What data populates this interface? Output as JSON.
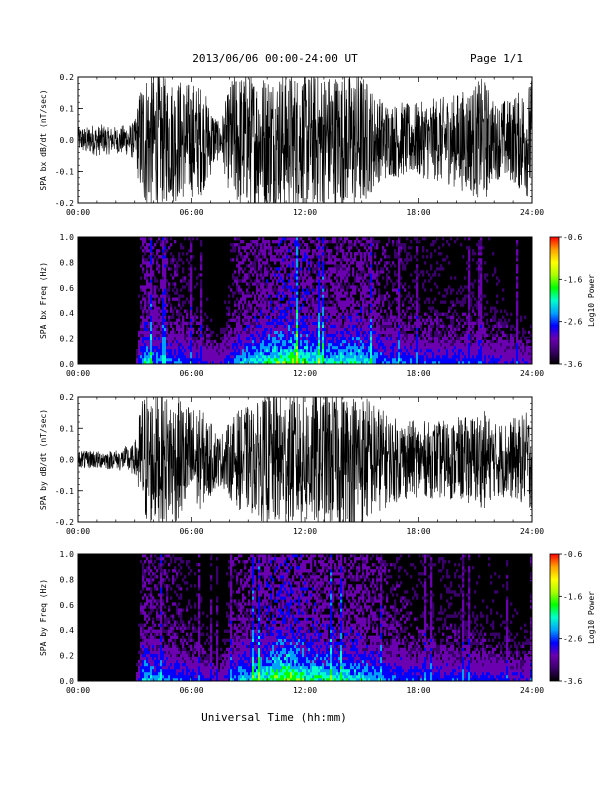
{
  "header": {
    "title": "2013/06/06  00:00-24:00 UT",
    "page": "Page 1/1"
  },
  "colors": {
    "trace": "#000000",
    "spectro_bg": "#000000",
    "axis": "#000000"
  },
  "colorbar_stops": [
    "#000000",
    "#3a006a",
    "#6a00b0",
    "#0000ff",
    "#00a0ff",
    "#00ffcc",
    "#00ff00",
    "#aaff00",
    "#ffff00",
    "#ffa000",
    "#ff0000"
  ],
  "chart_data": [
    {
      "type": "line",
      "id": "bx-dbdt",
      "ylabel": "SPA bx dB/dt (nT/sec)",
      "ylim": [
        -0.2,
        0.2
      ],
      "yticks": [
        "-0.2",
        "-0.1",
        "0.0",
        "0.1",
        "0.2"
      ],
      "yticks_values": [
        -0.2,
        -0.1,
        0.0,
        0.1,
        0.2
      ],
      "xticks": [
        "00:00",
        "06:00",
        "12:00",
        "18:00",
        "24:00"
      ],
      "xlim_hours": [
        0,
        24
      ],
      "envelope_hours": [
        0,
        1,
        2,
        3,
        3.4,
        3.6,
        5,
        6.5,
        7.5,
        8.2,
        9,
        10,
        11,
        12,
        13,
        14,
        15,
        15.8,
        16.5,
        18,
        20,
        21.5,
        22,
        23,
        24
      ],
      "envelope_amp": [
        0.04,
        0.05,
        0.04,
        0.06,
        0.22,
        0.22,
        0.2,
        0.18,
        0.05,
        0.22,
        0.22,
        0.22,
        0.22,
        0.22,
        0.22,
        0.22,
        0.22,
        0.14,
        0.12,
        0.12,
        0.15,
        0.2,
        0.12,
        0.14,
        0.2
      ]
    },
    {
      "type": "heatmap",
      "id": "bx-spectrogram",
      "ylabel": "SPA bx Freq (Hz)",
      "ylim": [
        0.0,
        1.0
      ],
      "yticks": [
        "0.0",
        "0.2",
        "0.4",
        "0.6",
        "0.8",
        "1.0"
      ],
      "yticks_values": [
        0.0,
        0.2,
        0.4,
        0.6,
        0.8,
        1.0
      ],
      "xticks": [
        "00:00",
        "06:00",
        "12:00",
        "18:00",
        "24:00"
      ],
      "xlim_hours": [
        0,
        24
      ],
      "colorbar_label": "Log10 Power",
      "colorbar_ticks": [
        "-0.6",
        "-1.6",
        "-2.6",
        "-3.6"
      ],
      "colorbar_values": [
        -0.6,
        -1.6,
        -2.6,
        -3.6
      ],
      "activity_hours": [
        0,
        3,
        3.5,
        4,
        6,
        7.5,
        8.5,
        10,
        11.5,
        13,
        15,
        16,
        18,
        20,
        22,
        24
      ],
      "activity_level": [
        0.05,
        0.1,
        0.75,
        0.6,
        0.45,
        0.3,
        0.6,
        0.8,
        0.95,
        0.7,
        0.75,
        0.55,
        0.45,
        0.45,
        0.4,
        0.35
      ]
    },
    {
      "type": "line",
      "id": "by-dbdt",
      "ylabel": "SPA by dB/dt (nT/sec)",
      "ylim": [
        -0.2,
        0.2
      ],
      "yticks": [
        "-0.2",
        "-0.1",
        "0.0",
        "0.1",
        "0.2"
      ],
      "yticks_values": [
        -0.2,
        -0.1,
        0.0,
        0.1,
        0.2
      ],
      "xticks": [
        "00:00",
        "06:00",
        "12:00",
        "18:00",
        "24:00"
      ],
      "xlim_hours": [
        0,
        24
      ],
      "envelope_hours": [
        0,
        1,
        2,
        3,
        3.4,
        3.6,
        5,
        6.5,
        7.5,
        8.5,
        9.5,
        10,
        11,
        12,
        13,
        14,
        15,
        15.8,
        16.5,
        18,
        20,
        21.5,
        22,
        23,
        24
      ],
      "envelope_amp": [
        0.03,
        0.03,
        0.03,
        0.05,
        0.22,
        0.22,
        0.21,
        0.16,
        0.08,
        0.16,
        0.18,
        0.22,
        0.22,
        0.22,
        0.22,
        0.22,
        0.22,
        0.18,
        0.14,
        0.12,
        0.13,
        0.16,
        0.12,
        0.13,
        0.16
      ]
    },
    {
      "type": "heatmap",
      "id": "by-spectrogram",
      "ylabel": "SPA by Freq (Hz)",
      "ylim": [
        0.0,
        1.0
      ],
      "yticks": [
        "0.0",
        "0.2",
        "0.4",
        "0.6",
        "0.8",
        "1.0"
      ],
      "yticks_values": [
        0.0,
        0.2,
        0.4,
        0.6,
        0.8,
        1.0
      ],
      "xticks": [
        "00:00",
        "06:00",
        "12:00",
        "18:00",
        "24:00"
      ],
      "xlim_hours": [
        0,
        24
      ],
      "colorbar_label": "Log10 Power",
      "colorbar_ticks": [
        "-0.6",
        "-1.6",
        "-2.6",
        "-3.6"
      ],
      "colorbar_values": [
        -0.6,
        -1.6,
        -2.6,
        -3.6
      ],
      "activity_hours": [
        0,
        3,
        3.5,
        4,
        6,
        7.5,
        8.5,
        10,
        11,
        12,
        13,
        15,
        16,
        18,
        20,
        22,
        24
      ],
      "activity_level": [
        0.05,
        0.1,
        0.7,
        0.6,
        0.45,
        0.3,
        0.6,
        0.85,
        1.0,
        0.85,
        0.75,
        0.7,
        0.55,
        0.45,
        0.45,
        0.4,
        0.35
      ]
    }
  ],
  "xlabel": "Universal Time (hh:mm)"
}
